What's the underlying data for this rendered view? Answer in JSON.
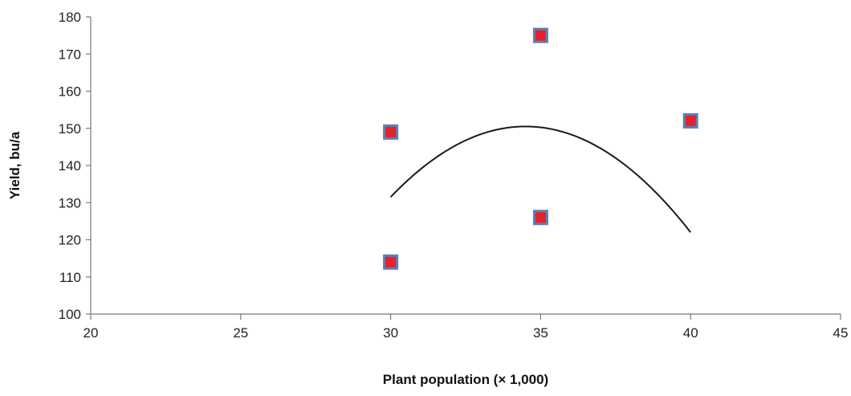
{
  "chart_data": {
    "type": "scatter",
    "title": "",
    "xlabel": "Plant population (× 1,000)",
    "ylabel": "Yield, bu/a",
    "xlim": [
      20,
      45
    ],
    "ylim": [
      100,
      180
    ],
    "x_ticks": [
      20,
      25,
      30,
      35,
      40,
      45
    ],
    "y_ticks": [
      100,
      110,
      120,
      130,
      140,
      150,
      160,
      170,
      180
    ],
    "grid": false,
    "legend": "none",
    "series": [
      {
        "points": [
          {
            "x": 30,
            "y": 114
          },
          {
            "x": 30,
            "y": 149
          },
          {
            "x": 35,
            "y": 126
          },
          {
            "x": 35,
            "y": 175
          },
          {
            "x": 40,
            "y": 152
          }
        ],
        "marker": "square",
        "color": "#e8202a",
        "edge_color": "#5b7fb5"
      }
    ],
    "trendline": {
      "type": "polynomial-2",
      "x_range": [
        30,
        40
      ],
      "through": [
        {
          "x": 30,
          "y": 131.5
        },
        {
          "x": 34.5,
          "y": 150.5
        },
        {
          "x": 40,
          "y": 122
        }
      ],
      "color": "#1a1a1a"
    }
  }
}
